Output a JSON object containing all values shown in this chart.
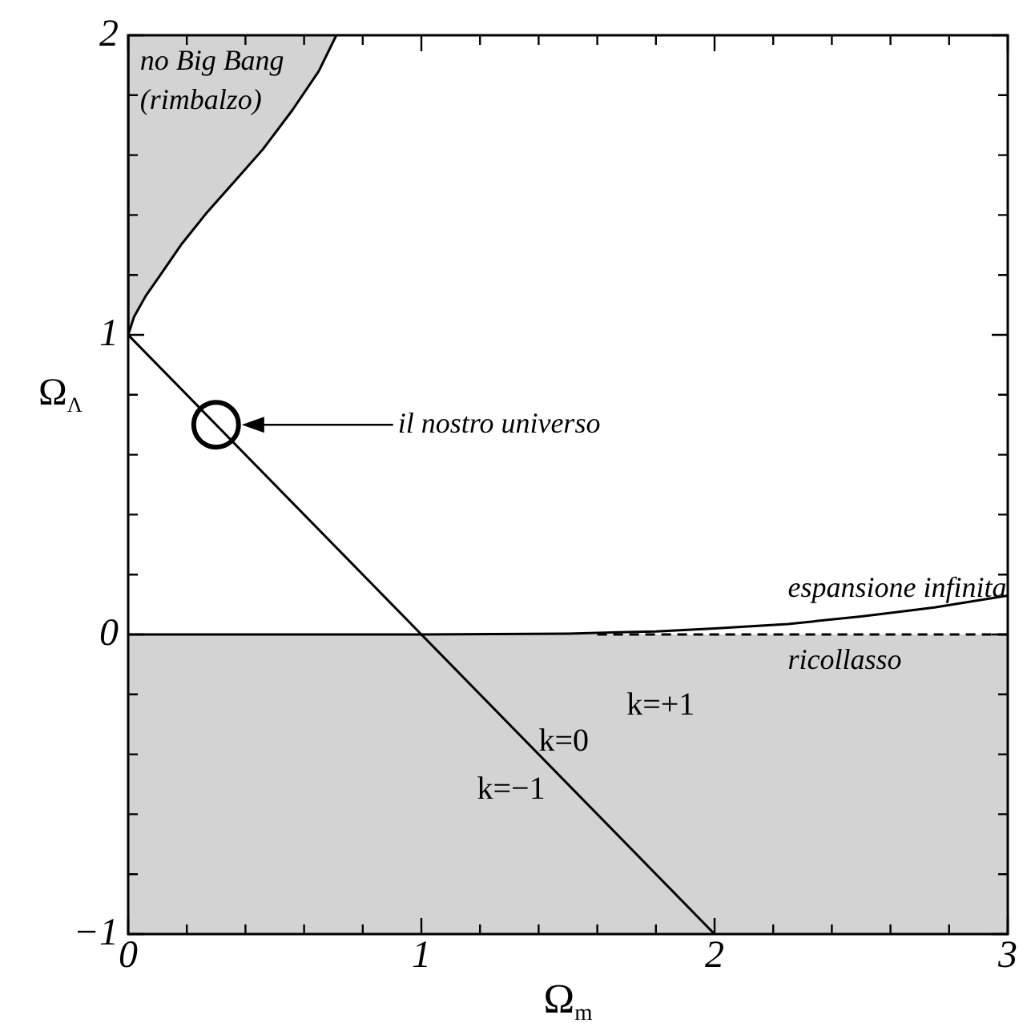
{
  "chart_data": {
    "type": "line",
    "xlabel": "Ω$_{m}$",
    "ylabel": "Ω$_{Λ}$",
    "xlim": [
      0,
      3
    ],
    "ylim": [
      -1,
      2
    ],
    "xticks": [
      0,
      {
        "value": 0.2,
        "label": null
      },
      {
        "value": 0.4,
        "label": null
      },
      {
        "value": 0.6,
        "label": null
      },
      {
        "value": 0.8,
        "label": null
      },
      1,
      {
        "value": 1.2,
        "label": null
      },
      {
        "value": 1.4,
        "label": null
      },
      {
        "value": 1.6,
        "label": null
      },
      {
        "value": 1.8,
        "label": null
      },
      2,
      {
        "value": 2.2,
        "label": null
      },
      {
        "value": 2.4,
        "label": null
      },
      {
        "value": 2.6,
        "label": null
      },
      {
        "value": 2.8,
        "label": null
      },
      3
    ],
    "yticks": [
      -1,
      {
        "value": -0.8,
        "label": null
      },
      {
        "value": -0.6,
        "label": null
      },
      {
        "value": -0.4,
        "label": null
      },
      {
        "value": -0.2,
        "label": null
      },
      0,
      {
        "value": 0.2,
        "label": null
      },
      {
        "value": 0.4,
        "label": null
      },
      {
        "value": 0.6,
        "label": null
      },
      {
        "value": 0.8,
        "label": null
      },
      1,
      {
        "value": 1.2,
        "label": null
      },
      {
        "value": 1.4,
        "label": null
      },
      {
        "value": 1.6,
        "label": null
      },
      {
        "value": 1.8,
        "label": null
      },
      2
    ],
    "grid": false,
    "legend": false,
    "bands": [
      {
        "axis": "y",
        "from": -1,
        "to": 0,
        "color": "#d3d3d3"
      }
    ],
    "series": [
      {
        "type": "area",
        "color": "#d3d3d3",
        "x": [
          0,
          0,
          0.02,
          0.06,
          0.11,
          0.18,
          0.27,
          0.37,
          0.46,
          0.56,
          0.65,
          0.71
        ],
        "values": [
          2,
          1,
          1.06,
          1.13,
          1.2,
          1.3,
          1.41,
          1.52,
          1.62,
          1.75,
          1.88,
          2
        ]
      },
      {
        "color": "#000000",
        "x": [
          0,
          2
        ],
        "values": [
          1,
          -1
        ]
      },
      {
        "color": "#000000",
        "x": [
          0,
          1,
          1.5,
          1.8,
          2,
          2.25,
          2.5,
          2.75,
          3
        ],
        "values": [
          0,
          0,
          0.003,
          0.01,
          0.02,
          0.035,
          0.06,
          0.09,
          0.13
        ]
      },
      {
        "color": "#000000",
        "line_style": "dashed",
        "x": [
          1.6,
          3
        ],
        "values": [
          0,
          0
        ]
      },
      {
        "type": "scatter",
        "color": "#000000",
        "marker": "circle",
        "x": [
          0.3
        ],
        "values": [
          0.7
        ]
      }
    ],
    "annotations": [
      "il nostro universo",
      "no Big Bang",
      "(rimbalzo)",
      "espansione infinita",
      "ricollasso",
      "k=0",
      "k=+1",
      "k=−1"
    ]
  }
}
